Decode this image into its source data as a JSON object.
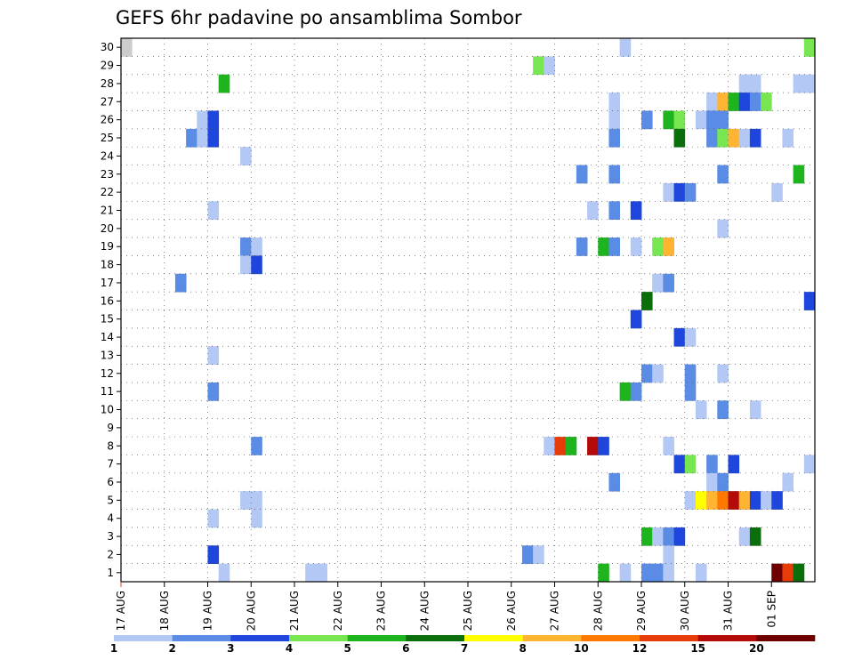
{
  "chart_data": {
    "type": "heatmap",
    "title": "GEFS 6hr padavine po ansamblima Sombor",
    "x_ticks": [
      "17 AUG",
      "18 AUG",
      "19 AUG",
      "20 AUG",
      "21 AUG",
      "22 AUG",
      "23 AUG",
      "24 AUG",
      "25 AUG",
      "26 AUG",
      "27 AUG",
      "28 AUG",
      "29 AUG",
      "30 AUG",
      "31 AUG",
      "01 SEP"
    ],
    "x_range_days": [
      0,
      15
    ],
    "y_ticks": [
      "1",
      "2",
      "3",
      "4",
      "5",
      "6",
      "7",
      "8",
      "9",
      "10",
      "11",
      "12",
      "13",
      "14",
      "15",
      "16",
      "17",
      "18",
      "19",
      "20",
      "21",
      "22",
      "23",
      "24",
      "25",
      "26",
      "27",
      "28",
      "29",
      "30"
    ],
    "y_label": "",
    "x_label": "",
    "grid": true,
    "colorbar": {
      "labels": [
        "1",
        "2",
        "3",
        "4",
        "5",
        "6",
        "7",
        "8",
        "10",
        "12",
        "15",
        "20"
      ],
      "colors": [
        "#b4c8f5",
        "#5a8ce6",
        "#1e46dc",
        "#78e650",
        "#1eb41e",
        "#0a6e0a",
        "#ffff00",
        "#ffb432",
        "#ff7800",
        "#e63c0a",
        "#b40a0a",
        "#6e0000"
      ]
    },
    "cells_note": "",
    "cells": [
      {
        "ens": 30,
        "step": 46,
        "level": 1
      },
      {
        "ens": 30,
        "step": 63,
        "level": 4
      },
      {
        "ens": 30,
        "step": 0,
        "level": 0
      },
      {
        "ens": 29,
        "step": 38,
        "level": 4
      },
      {
        "ens": 29,
        "step": 39,
        "level": 1
      },
      {
        "ens": 28,
        "step": 9,
        "level": 5
      },
      {
        "ens": 28,
        "step": 57,
        "level": 1
      },
      {
        "ens": 28,
        "step": 58,
        "level": 1
      },
      {
        "ens": 28,
        "step": 62,
        "level": 1
      },
      {
        "ens": 28,
        "step": 63,
        "level": 1
      },
      {
        "ens": 27,
        "step": 45,
        "level": 1
      },
      {
        "ens": 27,
        "step": 54,
        "level": 1
      },
      {
        "ens": 27,
        "step": 55,
        "level": 8
      },
      {
        "ens": 27,
        "step": 56,
        "level": 5
      },
      {
        "ens": 27,
        "step": 57,
        "level": 3
      },
      {
        "ens": 27,
        "step": 58,
        "level": 2
      },
      {
        "ens": 27,
        "step": 59,
        "level": 4
      },
      {
        "ens": 26,
        "step": 7,
        "level": 1
      },
      {
        "ens": 26,
        "step": 8,
        "level": 3
      },
      {
        "ens": 26,
        "step": 45,
        "level": 1
      },
      {
        "ens": 26,
        "step": 48,
        "level": 2
      },
      {
        "ens": 26,
        "step": 50,
        "level": 5
      },
      {
        "ens": 26,
        "step": 51,
        "level": 4
      },
      {
        "ens": 26,
        "step": 53,
        "level": 1
      },
      {
        "ens": 26,
        "step": 54,
        "level": 2
      },
      {
        "ens": 26,
        "step": 55,
        "level": 2
      },
      {
        "ens": 25,
        "step": 6,
        "level": 2
      },
      {
        "ens": 25,
        "step": 7,
        "level": 1
      },
      {
        "ens": 25,
        "step": 8,
        "level": 3
      },
      {
        "ens": 25,
        "step": 45,
        "level": 2
      },
      {
        "ens": 25,
        "step": 51,
        "level": 6
      },
      {
        "ens": 25,
        "step": 54,
        "level": 2
      },
      {
        "ens": 25,
        "step": 55,
        "level": 4
      },
      {
        "ens": 25,
        "step": 56,
        "level": 8
      },
      {
        "ens": 25,
        "step": 57,
        "level": 1
      },
      {
        "ens": 25,
        "step": 58,
        "level": 3
      },
      {
        "ens": 25,
        "step": 61,
        "level": 1
      },
      {
        "ens": 24,
        "step": 11,
        "level": 1
      },
      {
        "ens": 23,
        "step": 42,
        "level": 2
      },
      {
        "ens": 23,
        "step": 45,
        "level": 2
      },
      {
        "ens": 23,
        "step": 55,
        "level": 2
      },
      {
        "ens": 23,
        "step": 62,
        "level": 5
      },
      {
        "ens": 22,
        "step": 50,
        "level": 1
      },
      {
        "ens": 22,
        "step": 51,
        "level": 3
      },
      {
        "ens": 22,
        "step": 52,
        "level": 2
      },
      {
        "ens": 22,
        "step": 60,
        "level": 1
      },
      {
        "ens": 21,
        "step": 8,
        "level": 1
      },
      {
        "ens": 21,
        "step": 43,
        "level": 1
      },
      {
        "ens": 21,
        "step": 45,
        "level": 2
      },
      {
        "ens": 21,
        "step": 47,
        "level": 3
      },
      {
        "ens": 20,
        "step": 55,
        "level": 1
      },
      {
        "ens": 19,
        "step": 11,
        "level": 2
      },
      {
        "ens": 19,
        "step": 12,
        "level": 1
      },
      {
        "ens": 19,
        "step": 42,
        "level": 2
      },
      {
        "ens": 19,
        "step": 44,
        "level": 5
      },
      {
        "ens": 19,
        "step": 45,
        "level": 2
      },
      {
        "ens": 19,
        "step": 47,
        "level": 1
      },
      {
        "ens": 19,
        "step": 49,
        "level": 4
      },
      {
        "ens": 19,
        "step": 50,
        "level": 8
      },
      {
        "ens": 18,
        "step": 11,
        "level": 1
      },
      {
        "ens": 18,
        "step": 12,
        "level": 3
      },
      {
        "ens": 17,
        "step": 5,
        "level": 2
      },
      {
        "ens": 17,
        "step": 49,
        "level": 1
      },
      {
        "ens": 17,
        "step": 50,
        "level": 2
      },
      {
        "ens": 16,
        "step": 48,
        "level": 6
      },
      {
        "ens": 16,
        "step": 63,
        "level": 3
      },
      {
        "ens": 15,
        "step": 47,
        "level": 3
      },
      {
        "ens": 14,
        "step": 51,
        "level": 3
      },
      {
        "ens": 14,
        "step": 52,
        "level": 1
      },
      {
        "ens": 13,
        "step": 8,
        "level": 1
      },
      {
        "ens": 12,
        "step": 48,
        "level": 2
      },
      {
        "ens": 12,
        "step": 49,
        "level": 1
      },
      {
        "ens": 12,
        "step": 52,
        "level": 2
      },
      {
        "ens": 12,
        "step": 55,
        "level": 1
      },
      {
        "ens": 11,
        "step": 8,
        "level": 2
      },
      {
        "ens": 11,
        "step": 46,
        "level": 5
      },
      {
        "ens": 11,
        "step": 47,
        "level": 2
      },
      {
        "ens": 11,
        "step": 52,
        "level": 2
      },
      {
        "ens": 10,
        "step": 53,
        "level": 1
      },
      {
        "ens": 10,
        "step": 55,
        "level": 2
      },
      {
        "ens": 10,
        "step": 58,
        "level": 1
      },
      {
        "ens": 8,
        "step": 12,
        "level": 2
      },
      {
        "ens": 8,
        "step": 39,
        "level": 1
      },
      {
        "ens": 8,
        "step": 40,
        "level": 10
      },
      {
        "ens": 8,
        "step": 41,
        "level": 5
      },
      {
        "ens": 8,
        "step": 43,
        "level": 11
      },
      {
        "ens": 8,
        "step": 44,
        "level": 3
      },
      {
        "ens": 8,
        "step": 50,
        "level": 1
      },
      {
        "ens": 7,
        "step": 51,
        "level": 3
      },
      {
        "ens": 7,
        "step": 52,
        "level": 4
      },
      {
        "ens": 7,
        "step": 54,
        "level": 2
      },
      {
        "ens": 7,
        "step": 56,
        "level": 3
      },
      {
        "ens": 7,
        "step": 63,
        "level": 1
      },
      {
        "ens": 6,
        "step": 45,
        "level": 2
      },
      {
        "ens": 6,
        "step": 54,
        "level": 1
      },
      {
        "ens": 6,
        "step": 55,
        "level": 2
      },
      {
        "ens": 6,
        "step": 61,
        "level": 1
      },
      {
        "ens": 5,
        "step": 11,
        "level": 1
      },
      {
        "ens": 5,
        "step": 12,
        "level": 1
      },
      {
        "ens": 5,
        "step": 52,
        "level": 1
      },
      {
        "ens": 5,
        "step": 53,
        "level": 7
      },
      {
        "ens": 5,
        "step": 54,
        "level": 8
      },
      {
        "ens": 5,
        "step": 55,
        "level": 9
      },
      {
        "ens": 5,
        "step": 56,
        "level": 11
      },
      {
        "ens": 5,
        "step": 57,
        "level": 8
      },
      {
        "ens": 5,
        "step": 58,
        "level": 3
      },
      {
        "ens": 5,
        "step": 59,
        "level": 1
      },
      {
        "ens": 5,
        "step": 60,
        "level": 3
      },
      {
        "ens": 4,
        "step": 8,
        "level": 1
      },
      {
        "ens": 4,
        "step": 12,
        "level": 1
      },
      {
        "ens": 3,
        "step": 48,
        "level": 5
      },
      {
        "ens": 3,
        "step": 49,
        "level": 1
      },
      {
        "ens": 3,
        "step": 50,
        "level": 2
      },
      {
        "ens": 3,
        "step": 51,
        "level": 3
      },
      {
        "ens": 3,
        "step": 57,
        "level": 1
      },
      {
        "ens": 3,
        "step": 58,
        "level": 6
      },
      {
        "ens": 2,
        "step": 8,
        "level": 3
      },
      {
        "ens": 2,
        "step": 37,
        "level": 2
      },
      {
        "ens": 2,
        "step": 38,
        "level": 1
      },
      {
        "ens": 2,
        "step": 50,
        "level": 1
      },
      {
        "ens": 1,
        "step": 9,
        "level": 1
      },
      {
        "ens": 1,
        "step": 17,
        "level": 1
      },
      {
        "ens": 1,
        "step": 18,
        "level": 1
      },
      {
        "ens": 1,
        "step": 44,
        "level": 5
      },
      {
        "ens": 1,
        "step": 46,
        "level": 1
      },
      {
        "ens": 1,
        "step": 48,
        "level": 2
      },
      {
        "ens": 1,
        "step": 49,
        "level": 2
      },
      {
        "ens": 1,
        "step": 50,
        "level": 1
      },
      {
        "ens": 1,
        "step": 53,
        "level": 1
      },
      {
        "ens": 1,
        "step": 60,
        "level": 12
      },
      {
        "ens": 1,
        "step": 61,
        "level": 10
      },
      {
        "ens": 1,
        "step": 62,
        "level": 6
      }
    ]
  }
}
